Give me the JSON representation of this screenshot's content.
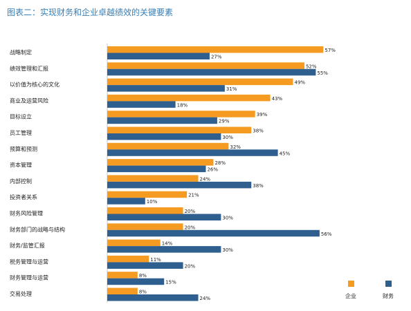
{
  "title": "图表二：实现财务和企业卓越绩效的关键要素",
  "colors": {
    "enterprise": "#f59b22",
    "finance": "#2f5f8f",
    "axis": "#c8c8c8"
  },
  "legend": {
    "enterprise": "企业",
    "finance": "财务"
  },
  "chart_data": {
    "type": "bar",
    "orientation": "horizontal",
    "title": "图表二：实现财务和企业卓越绩效的关键要素",
    "xlabel": "",
    "ylabel": "",
    "xlim": [
      0,
      60
    ],
    "value_format": "percent",
    "legend_position": "bottom-right",
    "grid": false,
    "categories": [
      "战略制定",
      "绩效管理和汇报",
      "以价值为核心的文化",
      "商业及运营风险",
      "目标设立",
      "员工管理",
      "预算和预测",
      "资本管理",
      "内部控制",
      "投资者关系",
      "财务风险管理",
      "财务部门的战略与结构",
      "财务/监管汇报",
      "税务管理与运营",
      "财务管理与运营",
      "交易处理"
    ],
    "series": [
      {
        "name": "企业",
        "values": [
          57,
          52,
          49,
          43,
          39,
          38,
          32,
          28,
          24,
          21,
          20,
          20,
          14,
          11,
          8,
          8
        ]
      },
      {
        "name": "财务",
        "values": [
          27,
          55,
          31,
          18,
          29,
          30,
          45,
          26,
          38,
          10,
          30,
          56,
          30,
          20,
          15,
          24
        ]
      }
    ]
  }
}
